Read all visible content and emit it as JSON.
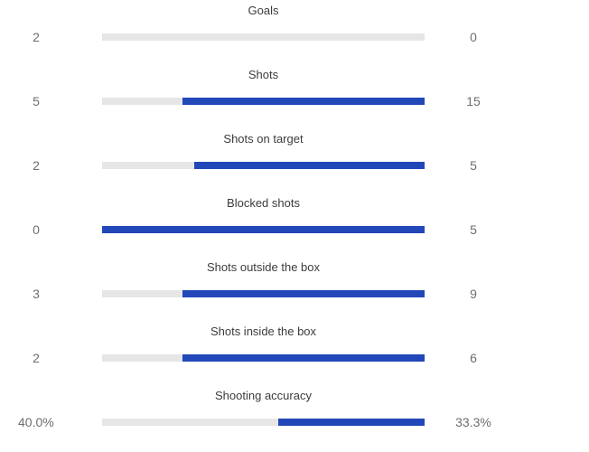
{
  "colors": {
    "home_track": "#e6e6e6",
    "away_fill": "#2247b8",
    "label_text": "#3c3c3c",
    "value_text": "#6e6e6e"
  },
  "stats": [
    {
      "label": "Goals",
      "home": "2",
      "away": "0",
      "away_share": 0.0
    },
    {
      "label": "Shots",
      "home": "5",
      "away": "15",
      "away_share": 0.75
    },
    {
      "label": "Shots on target",
      "home": "2",
      "away": "5",
      "away_share": 0.714
    },
    {
      "label": "Blocked shots",
      "home": "0",
      "away": "5",
      "away_share": 1.0
    },
    {
      "label": "Shots outside the box",
      "home": "3",
      "away": "9",
      "away_share": 0.75
    },
    {
      "label": "Shots inside the box",
      "home": "2",
      "away": "6",
      "away_share": 0.75
    },
    {
      "label": "Shooting accuracy",
      "home": "40.0%",
      "away": "33.3%",
      "away_share": 0.454
    }
  ]
}
